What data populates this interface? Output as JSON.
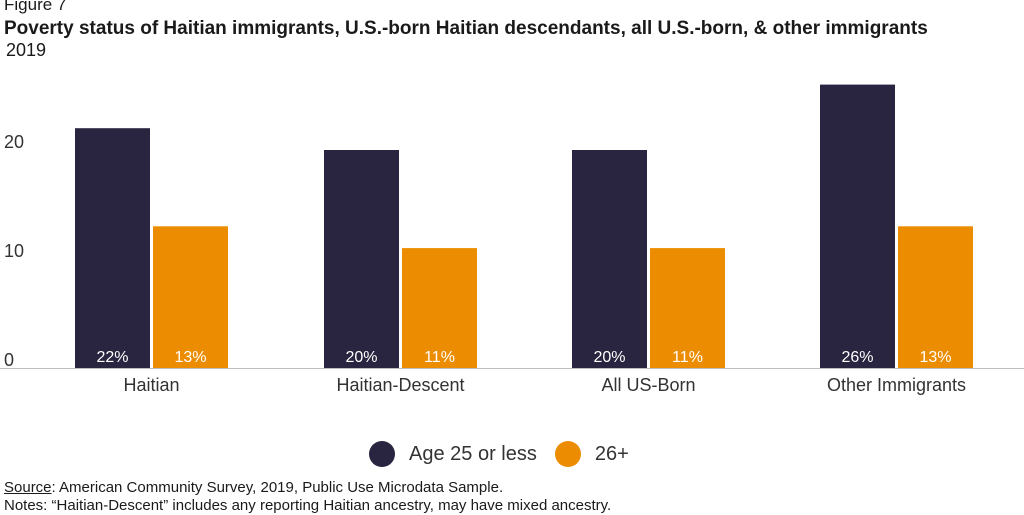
{
  "figure_label": "Figure 7",
  "source": {
    "label": "Source",
    "text": ": American Community Survey, 2019, Public Use Microdata Sample."
  },
  "notes": "Notes: “Haitian-Descent” includes any reporting Haitian ancestry, may have mixed ancestry.",
  "chart_data": {
    "type": "bar",
    "title": "Poverty status of Haitian immigrants, U.S.-born Haitian descendants, all U.S.-born, & other immigrants",
    "subtitle": "2019",
    "xlabel": "",
    "ylabel": "",
    "categories": [
      "Haitian",
      "Haitian-Descent",
      "All US-Born",
      "Other Immigrants"
    ],
    "series": [
      {
        "name": "Age 25 or less",
        "color": "#29243f",
        "values": [
          22,
          20,
          20,
          26
        ],
        "labels": [
          "22%",
          "20%",
          "20%",
          "26%"
        ]
      },
      {
        "name": "26+",
        "color": "#ec8c00",
        "values": [
          13,
          11,
          11,
          13
        ],
        "labels": [
          "13%",
          "11%",
          "11%",
          "13%"
        ]
      }
    ],
    "yticks": [
      "0",
      "10",
      "20"
    ],
    "ylim": [
      0,
      26
    ],
    "grid": false,
    "legend_position": "bottom"
  }
}
